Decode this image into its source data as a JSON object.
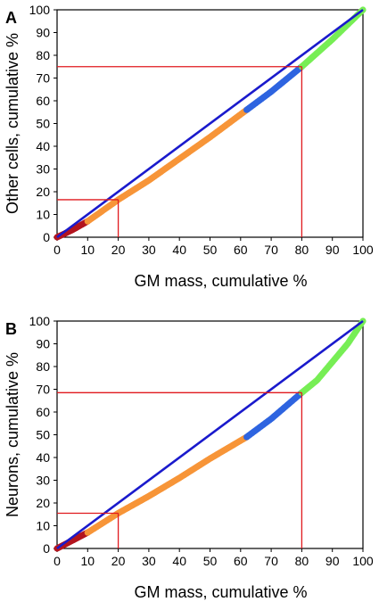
{
  "colors": {
    "diagonal": "#1a1acc",
    "guide": "#e0191e",
    "dark_red": "#b3151f",
    "orange": "#f79538",
    "blue": "#2e64e0",
    "green": "#77ee55"
  },
  "chart_data": [
    {
      "type": "scatter",
      "panel_label": "A",
      "xlabel": "GM mass, cumulative %",
      "ylabel": "Other cells, cumulative %",
      "xlim": [
        0,
        100
      ],
      "ylim": [
        0,
        100
      ],
      "xticks": [
        0,
        10,
        20,
        30,
        40,
        50,
        60,
        70,
        80,
        90,
        100
      ],
      "yticks": [
        0,
        10,
        20,
        30,
        40,
        50,
        60,
        70,
        80,
        90,
        100
      ],
      "grid": false,
      "diagonal": [
        [
          0,
          0
        ],
        [
          100,
          100
        ]
      ],
      "guides": [
        {
          "x": 20,
          "y": 16.5
        },
        {
          "x": 80,
          "y": 75
        }
      ],
      "series": [
        {
          "color_key": "dark_red",
          "x_range": [
            0,
            10
          ],
          "curve": [
            [
              0,
              0
            ],
            [
              5,
              3.2
            ],
            [
              10,
              7
            ]
          ]
        },
        {
          "color_key": "orange",
          "x_range": [
            10,
            62
          ],
          "curve": [
            [
              10,
              7
            ],
            [
              20,
              16.5
            ],
            [
              30,
              25
            ],
            [
              40,
              34.5
            ],
            [
              50,
              44
            ],
            [
              62,
              56
            ]
          ]
        },
        {
          "color_key": "blue",
          "x_range": [
            62,
            80
          ],
          "curve": [
            [
              62,
              56
            ],
            [
              70,
              64
            ],
            [
              80,
              75
            ]
          ]
        },
        {
          "color_key": "green",
          "x_range": [
            80,
            100
          ],
          "curve": [
            [
              80,
              75
            ],
            [
              90,
              87
            ],
            [
              100,
              100
            ]
          ]
        }
      ]
    },
    {
      "type": "scatter",
      "panel_label": "B",
      "xlabel": "GM mass, cumulative %",
      "ylabel": "Neurons, cumulative %",
      "xlim": [
        0,
        100
      ],
      "ylim": [
        0,
        100
      ],
      "xticks": [
        0,
        10,
        20,
        30,
        40,
        50,
        60,
        70,
        80,
        90,
        100
      ],
      "yticks": [
        0,
        10,
        20,
        30,
        40,
        50,
        60,
        70,
        80,
        90,
        100
      ],
      "grid": false,
      "diagonal": [
        [
          0,
          0
        ],
        [
          100,
          100
        ]
      ],
      "guides": [
        {
          "x": 20,
          "y": 15.5
        },
        {
          "x": 80,
          "y": 68.5
        }
      ],
      "series": [
        {
          "color_key": "dark_red",
          "x_range": [
            0,
            10
          ],
          "curve": [
            [
              0,
              0
            ],
            [
              5,
              3.5
            ],
            [
              10,
              7
            ]
          ]
        },
        {
          "color_key": "orange",
          "x_range": [
            10,
            62
          ],
          "curve": [
            [
              10,
              7
            ],
            [
              20,
              15.5
            ],
            [
              30,
              23
            ],
            [
              40,
              31
            ],
            [
              50,
              39.5
            ],
            [
              62,
              49
            ]
          ]
        },
        {
          "color_key": "blue",
          "x_range": [
            62,
            80
          ],
          "curve": [
            [
              62,
              49
            ],
            [
              70,
              57
            ],
            [
              80,
              68.5
            ]
          ]
        },
        {
          "color_key": "green",
          "x_range": [
            80,
            100
          ],
          "curve": [
            [
              80,
              68.5
            ],
            [
              85,
              74
            ],
            [
              90,
              82
            ],
            [
              95,
              90
            ],
            [
              100,
              100
            ]
          ]
        }
      ]
    }
  ]
}
